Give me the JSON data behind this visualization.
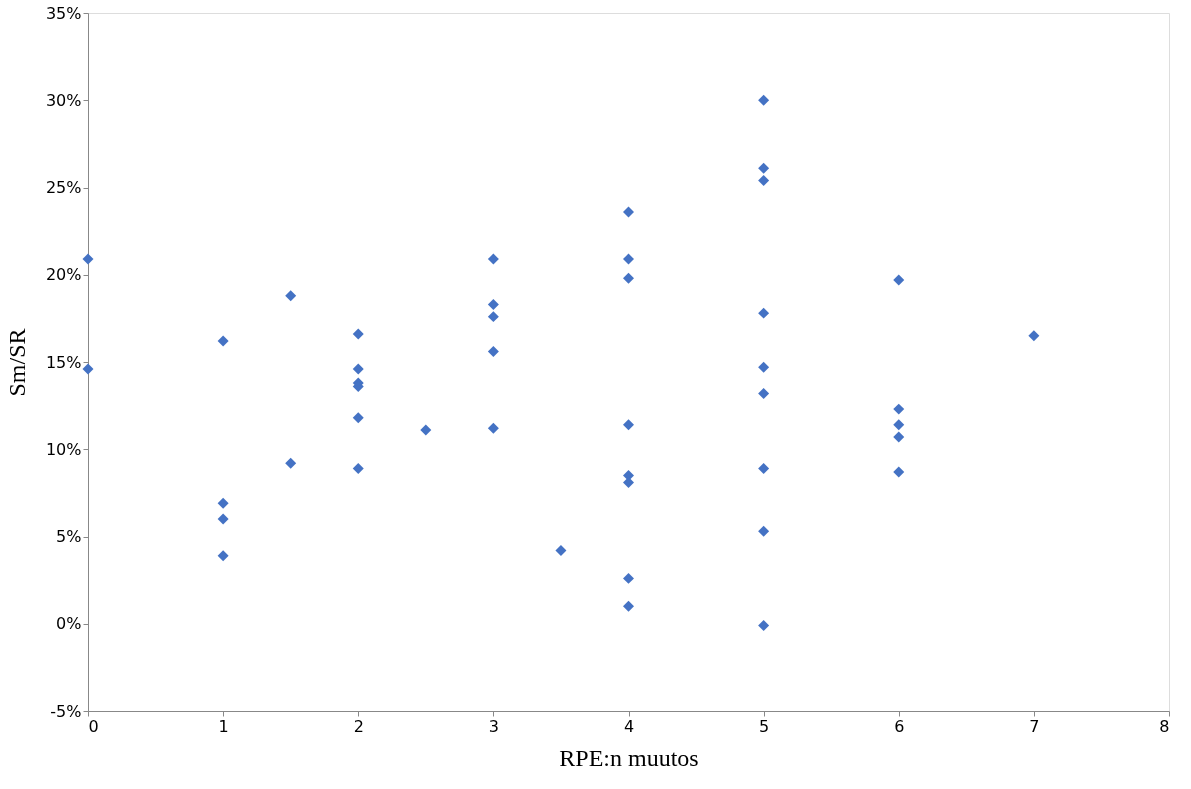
{
  "chart_data": {
    "type": "scatter",
    "xlabel": "RPE:n muutos",
    "ylabel": "Sm/SR",
    "x": [
      0,
      0,
      1,
      1,
      1,
      1,
      1.5,
      1.5,
      2,
      2,
      2,
      2,
      2,
      2,
      2.5,
      3,
      3,
      3,
      3,
      3,
      3.5,
      4,
      4,
      4,
      4,
      4,
      4,
      4,
      4,
      5,
      5,
      5,
      5,
      5,
      5,
      5,
      5,
      5,
      6,
      6,
      6,
      6,
      6,
      7
    ],
    "series": [
      {
        "color": "#4472c4",
        "values": [
          20.9,
          14.6,
          16.2,
          6.9,
          6.0,
          3.9,
          18.8,
          9.2,
          16.6,
          14.6,
          13.8,
          13.6,
          11.8,
          8.9,
          11.1,
          20.9,
          18.3,
          17.6,
          15.6,
          11.2,
          4.2,
          23.6,
          20.9,
          19.8,
          11.4,
          8.5,
          8.1,
          2.6,
          1.0,
          30.0,
          26.1,
          25.4,
          17.8,
          14.7,
          13.2,
          8.9,
          5.3,
          -0.1,
          19.7,
          12.3,
          11.4,
          10.7,
          8.7,
          16.5
        ]
      }
    ],
    "xlim": [
      0,
      8
    ],
    "xticks": [
      0,
      1,
      2,
      3,
      4,
      5,
      6,
      7,
      8
    ],
    "ylim": [
      -5,
      35
    ],
    "yticks": [
      {
        "value": -5,
        "label": "-5%"
      },
      {
        "value": 0,
        "label": "0%"
      },
      {
        "value": 5,
        "label": "5%"
      },
      {
        "value": 10,
        "label": "10%"
      },
      {
        "value": 15,
        "label": "15%"
      },
      {
        "value": 20,
        "label": "20%"
      },
      {
        "value": 25,
        "label": "25%"
      },
      {
        "value": 30,
        "label": "30%"
      },
      {
        "value": 35,
        "label": "35%"
      }
    ],
    "marker": "diamond",
    "grid": false
  }
}
